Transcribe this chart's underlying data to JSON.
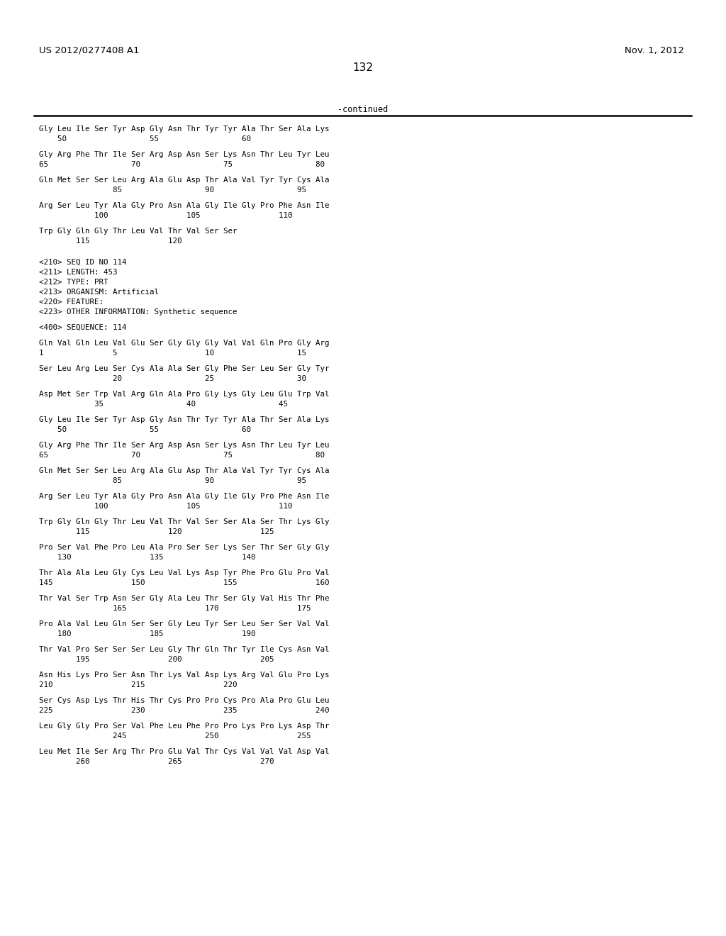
{
  "header_left": "US 2012/0277408 A1",
  "header_right": "Nov. 1, 2012",
  "page_number": "132",
  "continued_text": "-continued",
  "background_color": "#ffffff",
  "text_color": "#000000",
  "lines": [
    "Gly Leu Ile Ser Tyr Asp Gly Asn Thr Tyr Tyr Ala Thr Ser Ala Lys",
    "    50                  55                  60",
    "",
    "Gly Arg Phe Thr Ile Ser Arg Asp Asn Ser Lys Asn Thr Leu Tyr Leu",
    "65                  70                  75                  80",
    "",
    "Gln Met Ser Ser Leu Arg Ala Glu Asp Thr Ala Val Tyr Tyr Cys Ala",
    "                85                  90                  95",
    "",
    "Arg Ser Leu Tyr Ala Gly Pro Asn Ala Gly Ile Gly Pro Phe Asn Ile",
    "            100                 105                 110",
    "",
    "Trp Gly Gln Gly Thr Leu Val Thr Val Ser Ser",
    "        115                 120",
    "",
    "",
    "<210> SEQ ID NO 114",
    "<211> LENGTH: 453",
    "<212> TYPE: PRT",
    "<213> ORGANISM: Artificial",
    "<220> FEATURE:",
    "<223> OTHER INFORMATION: Synthetic sequence",
    "",
    "<400> SEQUENCE: 114",
    "",
    "Gln Val Gln Leu Val Glu Ser Gly Gly Gly Val Val Gln Pro Gly Arg",
    "1               5                   10                  15",
    "",
    "Ser Leu Arg Leu Ser Cys Ala Ala Ser Gly Phe Ser Leu Ser Gly Tyr",
    "                20                  25                  30",
    "",
    "Asp Met Ser Trp Val Arg Gln Ala Pro Gly Lys Gly Leu Glu Trp Val",
    "            35                  40                  45",
    "",
    "Gly Leu Ile Ser Tyr Asp Gly Asn Thr Tyr Tyr Ala Thr Ser Ala Lys",
    "    50                  55                  60",
    "",
    "Gly Arg Phe Thr Ile Ser Arg Asp Asn Ser Lys Asn Thr Leu Tyr Leu",
    "65                  70                  75                  80",
    "",
    "Gln Met Ser Ser Leu Arg Ala Glu Asp Thr Ala Val Tyr Tyr Cys Ala",
    "                85                  90                  95",
    "",
    "Arg Ser Leu Tyr Ala Gly Pro Asn Ala Gly Ile Gly Pro Phe Asn Ile",
    "            100                 105                 110",
    "",
    "Trp Gly Gln Gly Thr Leu Val Thr Val Ser Ser Ala Ser Thr Lys Gly",
    "        115                 120                 125",
    "",
    "Pro Ser Val Phe Pro Leu Ala Pro Ser Ser Lys Ser Thr Ser Gly Gly",
    "    130                 135                 140",
    "",
    "Thr Ala Ala Leu Gly Cys Leu Val Lys Asp Tyr Phe Pro Glu Pro Val",
    "145                 150                 155                 160",
    "",
    "Thr Val Ser Trp Asn Ser Gly Ala Leu Thr Ser Gly Val His Thr Phe",
    "                165                 170                 175",
    "",
    "Pro Ala Val Leu Gln Ser Ser Gly Leu Tyr Ser Leu Ser Ser Val Val",
    "    180                 185                 190",
    "",
    "Thr Val Pro Ser Ser Ser Leu Gly Thr Gln Thr Tyr Ile Cys Asn Val",
    "        195                 200                 205",
    "",
    "Asn His Lys Pro Ser Asn Thr Lys Val Asp Lys Arg Val Glu Pro Lys",
    "210                 215                 220",
    "",
    "Ser Cys Asp Lys Thr His Thr Cys Pro Pro Cys Pro Ala Pro Glu Leu",
    "225                 230                 235                 240",
    "",
    "Leu Gly Gly Pro Ser Val Phe Leu Phe Pro Pro Lys Pro Lys Asp Thr",
    "                245                 250                 255",
    "",
    "Leu Met Ile Ser Arg Thr Pro Glu Val Thr Cys Val Val Val Asp Val",
    "        260                 265                 270"
  ]
}
